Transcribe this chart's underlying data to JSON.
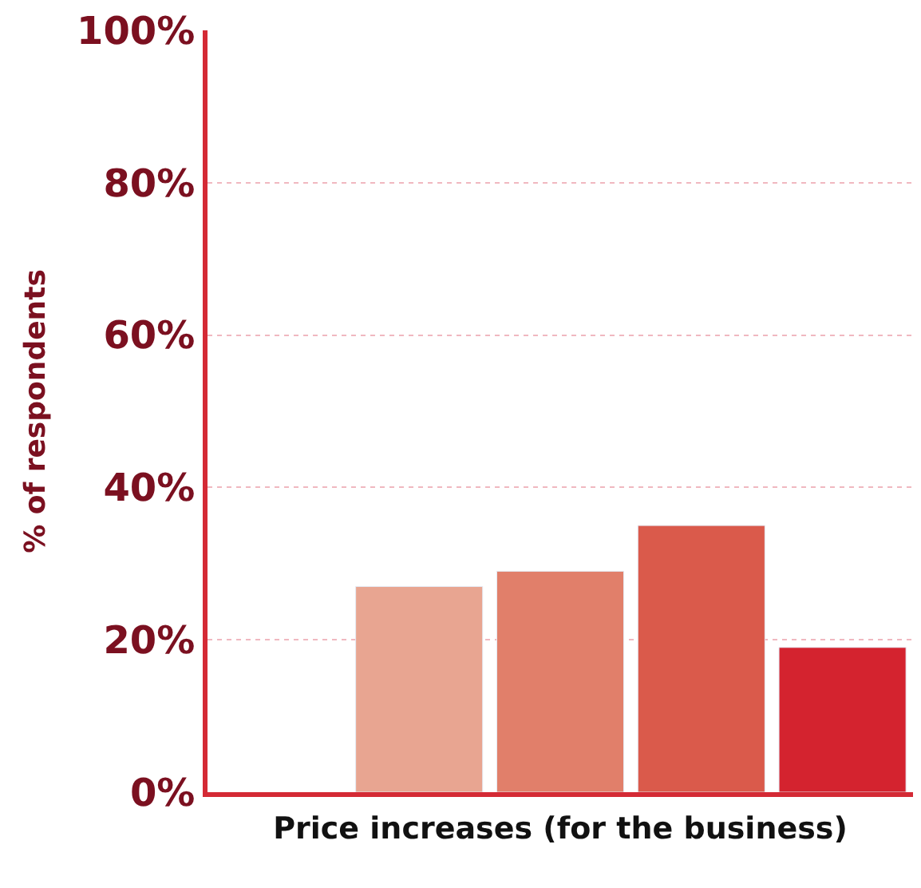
{
  "chart_data": {
    "type": "bar",
    "xlabel": "Price increases (for the business)",
    "ylabel": "% of respondents",
    "categories": [
      null,
      null,
      null,
      null,
      null
    ],
    "values": [
      null,
      27,
      29,
      35,
      19
    ],
    "colors": [
      "#e8a591",
      "#e8a591",
      "#e17f6a",
      "#da5a4b",
      "#d4232f"
    ],
    "ylim": [
      0,
      100
    ],
    "yticks": [
      {
        "value": 0,
        "label": "0%"
      },
      {
        "value": 20,
        "label": "20%"
      },
      {
        "value": 40,
        "label": "40%"
      },
      {
        "value": 60,
        "label": "60%"
      },
      {
        "value": 80,
        "label": "80%"
      },
      {
        "value": 100,
        "label": "100%"
      }
    ],
    "grid": "y"
  }
}
